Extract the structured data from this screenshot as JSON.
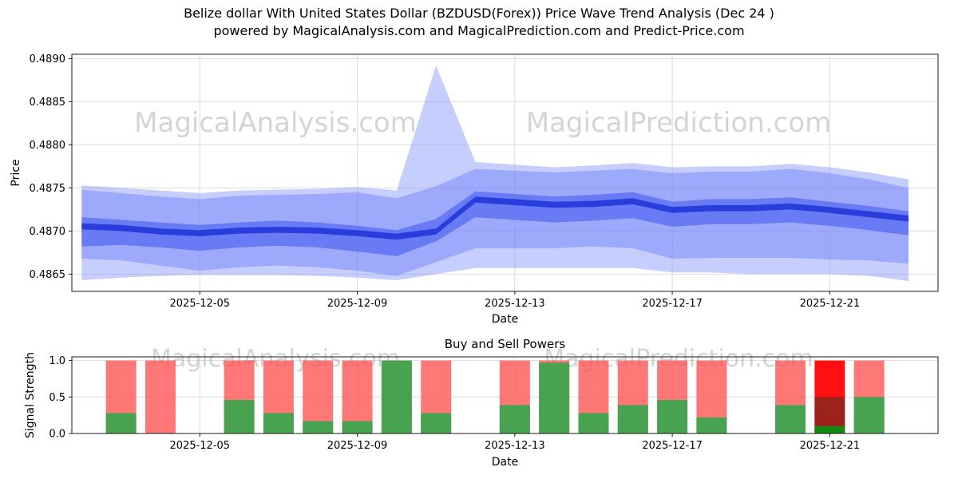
{
  "title_line1": "Belize dollar With United States Dollar (BZDUSD(Forex)) Price Wave Trend Analysis (Dec 24 )",
  "title_line2": "powered by MagicalAnalysis.com and MagicalPrediction.com and Predict-Price.com",
  "watermarks": {
    "left": "MagicalAnalysis.com",
    "right": "MagicalPrediction.com"
  },
  "colors": {
    "band_outer": "#8193fb",
    "band_mid": "#6478f8",
    "band_inner": "#3c55f0",
    "band_core": "#2236d9",
    "grid": "#dcdcdc",
    "spine": "#1a1a1a",
    "tick_text": "#000000",
    "sell_red": "#ff5252",
    "buy_green": "#47a34f",
    "highlight_red": "#ff0f0f",
    "highlight_darkred": "#93251d",
    "highlight_green": "#128a12",
    "watermark": "#9a9a9a"
  },
  "chart_data": [
    {
      "type": "area",
      "name": "price_wave",
      "xlabel": "Date",
      "ylabel": "Price",
      "ylim": [
        0.4863,
        0.48905
      ],
      "ytick_values": [
        0.489,
        0.4885,
        0.488,
        0.4875,
        0.487,
        0.4865
      ],
      "ytick_labels": [
        "0.4890",
        "0.4885",
        "0.4880",
        "0.4875",
        "0.4870",
        "0.4865"
      ],
      "xticks": [
        {
          "day": 3,
          "label": "2025-12-05"
        },
        {
          "day": 7,
          "label": "2025-12-09"
        },
        {
          "day": 11,
          "label": "2025-12-13"
        },
        {
          "day": 15,
          "label": "2025-12-17"
        },
        {
          "day": 19,
          "label": "2025-12-21"
        }
      ],
      "days": [
        0,
        1,
        2,
        3,
        4,
        5,
        6,
        7,
        8,
        9,
        10,
        11,
        12,
        13,
        14,
        15,
        16,
        17,
        18,
        19,
        20,
        21
      ],
      "bands": [
        {
          "name": "outer",
          "color_key": "band_outer",
          "opacity": 0.45,
          "upper": [
            0.48753,
            0.4875,
            0.48747,
            0.48744,
            0.48747,
            0.48748,
            0.48749,
            0.48751,
            0.48747,
            0.48892,
            0.4878,
            0.48777,
            0.48774,
            0.48776,
            0.48779,
            0.48774,
            0.48775,
            0.48775,
            0.48778,
            0.48774,
            0.48768,
            0.4876
          ],
          "lower": [
            0.48643,
            0.48646,
            0.48648,
            0.48649,
            0.48649,
            0.48649,
            0.48648,
            0.48646,
            0.48643,
            0.4865,
            0.48657,
            0.48657,
            0.48657,
            0.48657,
            0.48657,
            0.48652,
            0.48652,
            0.4865,
            0.4865,
            0.4865,
            0.48648,
            0.48642
          ]
        },
        {
          "name": "middle",
          "color_key": "band_mid",
          "opacity": 0.42,
          "upper": [
            0.48748,
            0.48744,
            0.4874,
            0.48737,
            0.48741,
            0.48742,
            0.48743,
            0.48745,
            0.48738,
            0.48752,
            0.48772,
            0.4877,
            0.48768,
            0.4877,
            0.48772,
            0.48767,
            0.48769,
            0.48769,
            0.48772,
            0.48767,
            0.4876,
            0.4875
          ],
          "lower": [
            0.48668,
            0.48666,
            0.4866,
            0.48654,
            0.48658,
            0.4866,
            0.48658,
            0.48654,
            0.48648,
            0.48664,
            0.4868,
            0.4868,
            0.4868,
            0.48682,
            0.4868,
            0.48668,
            0.48669,
            0.48669,
            0.48669,
            0.48667,
            0.48666,
            0.48662
          ]
        },
        {
          "name": "inner",
          "color_key": "band_inner",
          "opacity": 0.55,
          "upper": [
            0.48716,
            0.48713,
            0.4871,
            0.48707,
            0.4871,
            0.48712,
            0.4871,
            0.48706,
            0.48701,
            0.48714,
            0.48746,
            0.48743,
            0.4874,
            0.48742,
            0.48745,
            0.48734,
            0.48737,
            0.48737,
            0.48739,
            0.48734,
            0.48729,
            0.48723
          ],
          "lower": [
            0.48682,
            0.48684,
            0.48681,
            0.48677,
            0.48681,
            0.48683,
            0.48681,
            0.48676,
            0.48671,
            0.48688,
            0.48716,
            0.48713,
            0.4871,
            0.48712,
            0.48715,
            0.48705,
            0.48708,
            0.48708,
            0.4871,
            0.48706,
            0.48701,
            0.48695
          ]
        },
        {
          "name": "core",
          "color_key": "band_core",
          "opacity": 0.9,
          "upper": [
            0.48709,
            0.48707,
            0.48703,
            0.48701,
            0.48704,
            0.48705,
            0.48704,
            0.48701,
            0.48697,
            0.48703,
            0.4874,
            0.48737,
            0.48734,
            0.48735,
            0.48738,
            0.48728,
            0.4873,
            0.4873,
            0.48732,
            0.48728,
            0.48723,
            0.48718
          ],
          "lower": [
            0.48702,
            0.487,
            0.48696,
            0.48694,
            0.48697,
            0.48698,
            0.48697,
            0.48694,
            0.4869,
            0.48696,
            0.48733,
            0.4873,
            0.48727,
            0.48728,
            0.48731,
            0.48721,
            0.48723,
            0.48723,
            0.48725,
            0.48721,
            0.48716,
            0.48711
          ]
        }
      ]
    },
    {
      "type": "bar",
      "name": "buy_sell_powers",
      "title": "Buy and Sell Powers",
      "xlabel": "Date",
      "ylabel": "Signal Strength",
      "ylim": [
        0,
        1.05
      ],
      "ytick_values": [
        0.0,
        0.5,
        1.0
      ],
      "ytick_labels": [
        "0.0",
        "0.5",
        "1.0"
      ],
      "xticks": [
        {
          "day": 3,
          "label": "2025-12-05"
        },
        {
          "day": 7,
          "label": "2025-12-09"
        },
        {
          "day": 11,
          "label": "2025-12-13"
        },
        {
          "day": 15,
          "label": "2025-12-17"
        },
        {
          "day": 19,
          "label": "2025-12-21"
        }
      ],
      "bars": [
        {
          "day": 1,
          "date": "2025-12-03",
          "sell": 1.0,
          "buy": 0.28
        },
        {
          "day": 2,
          "date": "2025-12-04",
          "sell": 1.0,
          "buy": 0.0
        },
        {
          "day": 4,
          "date": "2025-12-06",
          "sell": 1.0,
          "buy": 0.46
        },
        {
          "day": 5,
          "date": "2025-12-07",
          "sell": 1.0,
          "buy": 0.28
        },
        {
          "day": 6,
          "date": "2025-12-08",
          "sell": 1.0,
          "buy": 0.17
        },
        {
          "day": 7,
          "date": "2025-12-09",
          "sell": 1.0,
          "buy": 0.17
        },
        {
          "day": 8,
          "date": "2025-12-10",
          "sell": 1.0,
          "buy": 1.0
        },
        {
          "day": 9,
          "date": "2025-12-11",
          "sell": 1.0,
          "buy": 0.28
        },
        {
          "day": 11,
          "date": "2025-12-13",
          "sell": 1.0,
          "buy": 0.39
        },
        {
          "day": 12,
          "date": "2025-12-14",
          "sell": 1.0,
          "buy": 0.97
        },
        {
          "day": 13,
          "date": "2025-12-15",
          "sell": 1.0,
          "buy": 0.28
        },
        {
          "day": 14,
          "date": "2025-12-16",
          "sell": 1.0,
          "buy": 0.39
        },
        {
          "day": 15,
          "date": "2025-12-17",
          "sell": 1.0,
          "buy": 0.46
        },
        {
          "day": 16,
          "date": "2025-12-18",
          "sell": 1.0,
          "buy": 0.22
        },
        {
          "day": 18,
          "date": "2025-12-20",
          "sell": 1.0,
          "buy": 0.39
        },
        {
          "day": 19,
          "date": "2025-12-21",
          "sell": 1.0,
          "buy": 0.1,
          "highlight": true,
          "overlay_sell": 0.5
        },
        {
          "day": 20,
          "date": "2025-12-22",
          "sell": 1.0,
          "buy": 0.5
        }
      ]
    }
  ]
}
